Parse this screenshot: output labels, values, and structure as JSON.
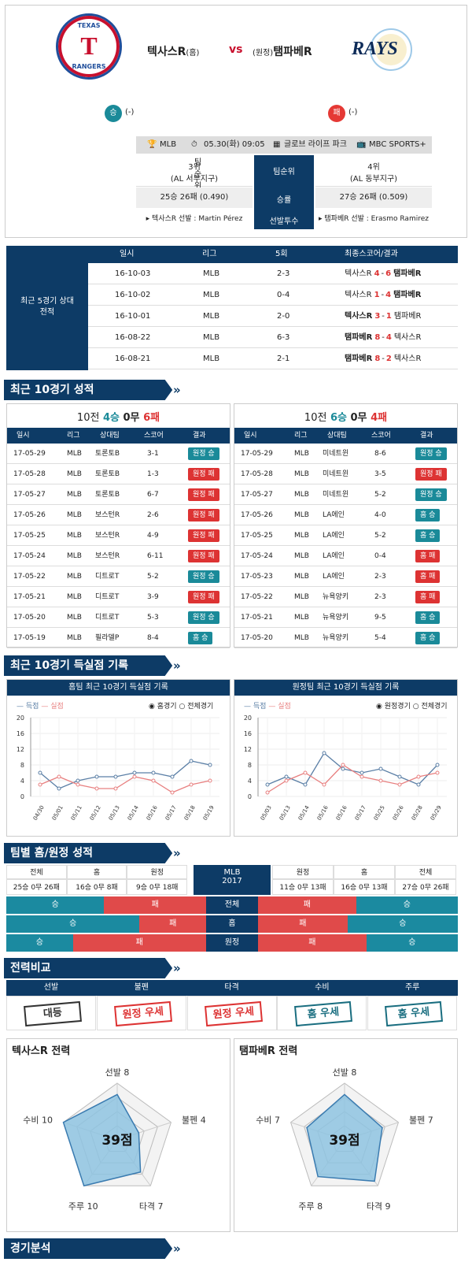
{
  "match": {
    "home_team": "텍사스R",
    "home_tag": "(홈)",
    "vs": "vs",
    "away_tag": "(원정)",
    "away_team": "탬파베R",
    "home_logo_top": "TEXAS",
    "home_logo_bottom": "RANGERS",
    "home_logo_letter": "T",
    "away_logo": "RAYS",
    "home_result": "승",
    "home_result_note": "(-)",
    "away_result": "패",
    "away_result_note": "(-)"
  },
  "info": {
    "league": "MLB",
    "datetime": "05.30(화) 09:05",
    "venue": "글로브 라이프 파크",
    "broadcast": "MBC SPORTS+"
  },
  "summary": {
    "home_rank": "3위",
    "home_div": "(AL 서부지구)",
    "rank_label": "팀순위",
    "away_rank": "4위",
    "away_div": "(AL 동부지구)",
    "home_record": "25승 26패 (0.490)",
    "record_label": "승률",
    "away_record": "27승 26패 (0.509)",
    "home_pitcher": "▸ 텍사스R 선발 : Martin Pérez",
    "pitcher_label": "선발투수",
    "away_pitcher": "▸ 탬파베R 선발 : Erasmo Ramirez"
  },
  "h2h": {
    "title": "최근 5경기 상대전적",
    "headers": [
      "일시",
      "리그",
      "5회",
      "최종스코어/결과"
    ],
    "rows": [
      {
        "date": "16-10-03",
        "league": "MLB",
        "inning5": "2-3",
        "left": "텍사스R",
        "ls": "4",
        "sep": "-",
        "rs": "6",
        "right": "탬파베R",
        "winner": "right"
      },
      {
        "date": "16-10-02",
        "league": "MLB",
        "inning5": "0-4",
        "left": "텍사스R",
        "ls": "1",
        "sep": "-",
        "rs": "4",
        "right": "탬파베R",
        "winner": "right"
      },
      {
        "date": "16-10-01",
        "league": "MLB",
        "inning5": "2-0",
        "left": "텍사스R",
        "ls": "3",
        "sep": "-",
        "rs": "1",
        "right": "탬파베R",
        "winner": "left"
      },
      {
        "date": "16-08-22",
        "league": "MLB",
        "inning5": "6-3",
        "left": "탬파베R",
        "ls": "8",
        "sep": "-",
        "rs": "4",
        "right": "텍사스R",
        "winner": "left"
      },
      {
        "date": "16-08-21",
        "league": "MLB",
        "inning5": "2-1",
        "left": "탬파베R",
        "ls": "8",
        "sep": "-",
        "rs": "2",
        "right": "텍사스R",
        "winner": "left"
      }
    ]
  },
  "recent10": {
    "section_title": "최근 10경기 성적",
    "home": {
      "prefix": "10전",
      "wins": "4승",
      "draws": "0무",
      "losses": "6패",
      "headers": [
        "일시",
        "리그",
        "상대팀",
        "스코어",
        "결과"
      ],
      "rows": [
        {
          "date": "17-05-29",
          "league": "MLB",
          "opp": "토론토B",
          "score": "3-1",
          "result": "원정 승",
          "win": true
        },
        {
          "date": "17-05-28",
          "league": "MLB",
          "opp": "토론토B",
          "score": "1-3",
          "result": "원정 패",
          "win": false
        },
        {
          "date": "17-05-27",
          "league": "MLB",
          "opp": "토론토B",
          "score": "6-7",
          "result": "원정 패",
          "win": false
        },
        {
          "date": "17-05-26",
          "league": "MLB",
          "opp": "보스턴R",
          "score": "2-6",
          "result": "원정 패",
          "win": false
        },
        {
          "date": "17-05-25",
          "league": "MLB",
          "opp": "보스턴R",
          "score": "4-9",
          "result": "원정 패",
          "win": false
        },
        {
          "date": "17-05-24",
          "league": "MLB",
          "opp": "보스턴R",
          "score": "6-11",
          "result": "원정 패",
          "win": false
        },
        {
          "date": "17-05-22",
          "league": "MLB",
          "opp": "디트로T",
          "score": "5-2",
          "result": "원정 승",
          "win": true
        },
        {
          "date": "17-05-21",
          "league": "MLB",
          "opp": "디트로T",
          "score": "3-9",
          "result": "원정 패",
          "win": false
        },
        {
          "date": "17-05-20",
          "league": "MLB",
          "opp": "디트로T",
          "score": "5-3",
          "result": "원정 승",
          "win": true
        },
        {
          "date": "17-05-19",
          "league": "MLB",
          "opp": "필라델P",
          "score": "8-4",
          "result": "홈 승",
          "win": true
        }
      ]
    },
    "away": {
      "prefix": "10전",
      "wins": "6승",
      "draws": "0무",
      "losses": "4패",
      "headers": [
        "일시",
        "리그",
        "상대팀",
        "스코어",
        "결과"
      ],
      "rows": [
        {
          "date": "17-05-29",
          "league": "MLB",
          "opp": "미네트윈",
          "score": "8-6",
          "result": "원정 승",
          "win": true
        },
        {
          "date": "17-05-28",
          "league": "MLB",
          "opp": "미네트윈",
          "score": "3-5",
          "result": "원정 패",
          "win": false
        },
        {
          "date": "17-05-27",
          "league": "MLB",
          "opp": "미네트윈",
          "score": "5-2",
          "result": "원정 승",
          "win": true
        },
        {
          "date": "17-05-26",
          "league": "MLB",
          "opp": "LA에인",
          "score": "4-0",
          "result": "홈 승",
          "win": true
        },
        {
          "date": "17-05-25",
          "league": "MLB",
          "opp": "LA에인",
          "score": "5-2",
          "result": "홈 승",
          "win": true
        },
        {
          "date": "17-05-24",
          "league": "MLB",
          "opp": "LA에인",
          "score": "0-4",
          "result": "홈 패",
          "win": false
        },
        {
          "date": "17-05-23",
          "league": "MLB",
          "opp": "LA에인",
          "score": "2-3",
          "result": "홈 패",
          "win": false
        },
        {
          "date": "17-05-22",
          "league": "MLB",
          "opp": "뉴욕양키",
          "score": "2-3",
          "result": "홈 패",
          "win": false
        },
        {
          "date": "17-05-21",
          "league": "MLB",
          "opp": "뉴욕양키",
          "score": "9-5",
          "result": "홈 승",
          "win": true
        },
        {
          "date": "17-05-20",
          "league": "MLB",
          "opp": "뉴욕양키",
          "score": "5-4",
          "result": "홈 승",
          "win": true
        }
      ]
    }
  },
  "scoring": {
    "section_title": "최근 10경기 득실점 기록",
    "home_title": "홈팀 최근 10경기 득실점 기록",
    "away_title": "원정팀 최근 10경기 득실점 기록",
    "legend_scored": "득점",
    "legend_allowed": "실점",
    "home_radio1": "홈경기",
    "home_radio2": "전체경기",
    "away_radio1": "원정경기",
    "away_radio2": "전체경기",
    "scored_color": "#5b7fa6",
    "allowed_color": "#e88080"
  },
  "chart_data": [
    {
      "type": "line",
      "ylim": [
        0,
        20
      ],
      "yticks": [
        0,
        4,
        8,
        12,
        16,
        20
      ],
      "x": [
        "04/30",
        "05/01",
        "05/11",
        "05/12",
        "05/13",
        "05/14",
        "05/16",
        "05/17",
        "05/18",
        "05/19"
      ],
      "series": [
        {
          "name": "득점",
          "values": [
            6,
            2,
            4,
            5,
            5,
            6,
            6,
            5,
            9,
            8
          ]
        },
        {
          "name": "실점",
          "values": [
            3,
            5,
            3,
            2,
            2,
            5,
            4,
            1,
            3,
            4
          ]
        }
      ]
    },
    {
      "type": "line",
      "ylim": [
        0,
        20
      ],
      "yticks": [
        0,
        4,
        8,
        12,
        16,
        20
      ],
      "x": [
        "05/03",
        "05/13",
        "05/14",
        "05/16",
        "05/16",
        "05/17",
        "05/25",
        "05/26",
        "05/28",
        "05/29"
      ],
      "series": [
        {
          "name": "득점",
          "values": [
            3,
            5,
            3,
            11,
            7,
            6,
            7,
            5,
            3,
            8
          ]
        },
        {
          "name": "실점",
          "values": [
            1,
            4,
            6,
            3,
            8,
            5,
            4,
            3,
            5,
            6
          ]
        }
      ]
    }
  ],
  "homeaway": {
    "section_title": "팀별 홈/원정 성적",
    "center_top": "MLB",
    "center_bottom": "2017",
    "left_headers": [
      "전체",
      "홈",
      "원정"
    ],
    "left_values": [
      "25승 0무 26패",
      "16승 0무 8패",
      "9승 0무 18패"
    ],
    "right_headers": [
      "원정",
      "홈",
      "전체"
    ],
    "right_values": [
      "11승 0무 13패",
      "16승 0무 13패",
      "27승 0무 26패"
    ],
    "bars": [
      {
        "label": "전체",
        "lw": 0.49,
        "rw": 0.509
      },
      {
        "label": "홈",
        "lw": 0.667,
        "rw": 0.552
      },
      {
        "label": "원정",
        "lw": 0.333,
        "rw": 0.458
      }
    ],
    "win": "승",
    "loss": "패"
  },
  "compare": {
    "section_title": "전력비교",
    "headers": [
      "선발",
      "불펜",
      "타격",
      "수비",
      "주루"
    ],
    "stamps": [
      {
        "text": "대등",
        "color": "#333"
      },
      {
        "text": "원정 우세",
        "color": "#d33"
      },
      {
        "text": "원정 우세",
        "color": "#d33"
      },
      {
        "text": "홈 우세",
        "color": "#1a6e80"
      },
      {
        "text": "홈 우세",
        "color": "#1a6e80"
      }
    ]
  },
  "radar": {
    "home": {
      "title": "텍사스R 전력",
      "score": "39점",
      "labels": {
        "sp": "선발 8",
        "bp": "불펜 4",
        "bat": "타격 7",
        "run": "주루 10",
        "def": "수비 10"
      },
      "values": [
        8,
        4,
        7,
        10,
        10
      ]
    },
    "away": {
      "title": "탬파베R 전력",
      "score": "39점",
      "labels": {
        "sp": "선발 8",
        "bp": "불펜 7",
        "bat": "타격 9",
        "run": "주루 8",
        "def": "수비 7"
      },
      "values": [
        8,
        7,
        9,
        8,
        7
      ]
    }
  },
  "analysis": {
    "section_title": "경기분석"
  }
}
